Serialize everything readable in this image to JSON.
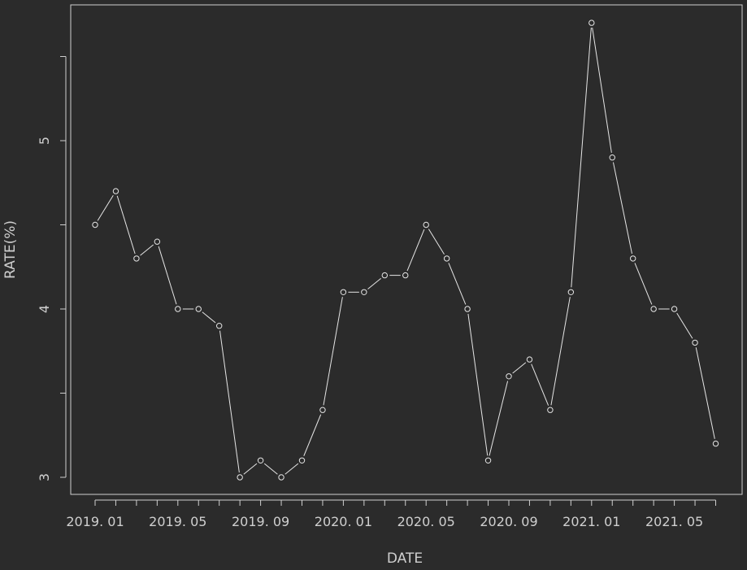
{
  "colors": {
    "background": "#2b2b2b",
    "foreground": "#cfcfcf",
    "series": "#e6e6e6"
  },
  "chart_data": {
    "type": "line",
    "plot_style": "points-connected-with-gaps",
    "marker": "open-circle",
    "xlabel": "DATE",
    "ylabel": "RATE(%)",
    "x": [
      "2019. 01",
      "2019. 02",
      "2019. 03",
      "2019. 04",
      "2019. 05",
      "2019. 06",
      "2019. 07",
      "2019. 08",
      "2019. 09",
      "2019. 10",
      "2019. 11",
      "2019. 12",
      "2020. 01",
      "2020. 02",
      "2020. 03",
      "2020. 04",
      "2020. 05",
      "2020. 06",
      "2020. 07",
      "2020. 08",
      "2020. 09",
      "2020. 10",
      "2020. 11",
      "2020. 12",
      "2021. 01",
      "2021. 02",
      "2021. 03",
      "2021. 04",
      "2021. 05",
      "2021. 06",
      "2021. 07"
    ],
    "values": [
      4.5,
      4.7,
      4.3,
      4.4,
      4.0,
      4.0,
      3.9,
      3.0,
      3.1,
      3.0,
      3.1,
      3.4,
      4.1,
      4.1,
      4.2,
      4.2,
      4.5,
      4.3,
      4.0,
      3.1,
      3.6,
      3.7,
      3.4,
      4.1,
      5.7,
      4.9,
      4.3,
      4.0,
      4.0,
      3.8,
      3.2
    ],
    "x_tick_labels": [
      "2019. 01",
      "2019. 05",
      "2019. 09",
      "2020. 01",
      "2020. 05",
      "2020. 09",
      "2021. 01",
      "2021. 05"
    ],
    "y_tick_labels": [
      "3",
      "4",
      "5"
    ],
    "y_minor_ticks": [
      3.5,
      4.5,
      5.5
    ],
    "ylim": [
      2.96,
      5.74
    ],
    "grid": false,
    "legend": "none"
  }
}
